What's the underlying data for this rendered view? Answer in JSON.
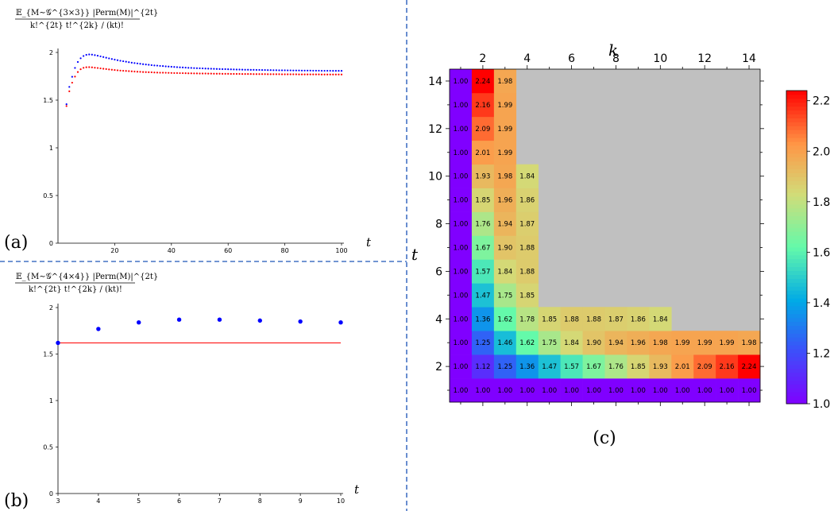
{
  "panels": {
    "a": {
      "tag": "(a)",
      "ylabel_numerator": "𝔼_{M∼𝒢^{3×3}} |Perm(M)|^{2t}",
      "ylabel_denominator": "k!^{2t} t!^{2k} / (kt)!",
      "xlabel": "t"
    },
    "b": {
      "tag": "(b)",
      "ylabel_numerator": "𝔼_{M∼𝒢^{4×4}} |Perm(M)|^{2t}",
      "ylabel_denominator": "k!^{2t} t!^{2k} / (kt)!",
      "xlabel": "t"
    },
    "c": {
      "tag": "(c)",
      "xlabel": "k",
      "ylabel": "t"
    }
  },
  "colors": {
    "series_blue": "#0000ff",
    "series_red": "#ff0000",
    "divider": "#4472c4",
    "na_cell": "#c0c0c0"
  },
  "chart_data": [
    {
      "panel": "a",
      "type": "scatter",
      "xlim": [
        0,
        100
      ],
      "ylim": [
        0,
        2
      ],
      "xticks": [
        20,
        40,
        60,
        80,
        100
      ],
      "yticks": [
        0,
        0.5,
        1,
        1.5,
        2
      ],
      "xticklabels": [
        "20",
        "40",
        "60",
        "80",
        "100"
      ],
      "yticklabels": [
        "0",
        "0.5",
        "1",
        "1.5",
        "2"
      ],
      "series": [
        {
          "color": "blue",
          "x": [
            3,
            4,
            5,
            6,
            7,
            8,
            9,
            10,
            11,
            12,
            13,
            14,
            15,
            16,
            17,
            18,
            19,
            20,
            21,
            22,
            23,
            24,
            25,
            26,
            27,
            28,
            29,
            30,
            31,
            32,
            33,
            34,
            35,
            36,
            37,
            38,
            39,
            40,
            41,
            42,
            43,
            44,
            45,
            46,
            47,
            48,
            49,
            50,
            51,
            52,
            53,
            54,
            55,
            56,
            57,
            58,
            59,
            60,
            61,
            62,
            63,
            64,
            65,
            66,
            67,
            68,
            69,
            70,
            71,
            72,
            73,
            74,
            75,
            76,
            77,
            78,
            79,
            80,
            81,
            82,
            83,
            84,
            85,
            86,
            87,
            88,
            89,
            90,
            91,
            92,
            93,
            94,
            95,
            96,
            97,
            98,
            99,
            100
          ],
          "y": [
            1.457,
            1.639,
            1.745,
            1.838,
            1.9,
            1.939,
            1.963,
            1.975,
            1.979,
            1.977,
            1.972,
            1.966,
            1.959,
            1.952,
            1.945,
            1.938,
            1.931,
            1.925,
            1.919,
            1.913,
            1.908,
            1.903,
            1.898,
            1.893,
            1.889,
            1.885,
            1.881,
            1.877,
            1.874,
            1.871,
            1.867,
            1.864,
            1.862,
            1.859,
            1.857,
            1.854,
            1.852,
            1.85,
            1.848,
            1.846,
            1.844,
            1.843,
            1.841,
            1.839,
            1.838,
            1.836,
            1.835,
            1.834,
            1.833,
            1.831,
            1.83,
            1.829,
            1.828,
            1.827,
            1.826,
            1.825,
            1.825,
            1.824,
            1.823,
            1.822,
            1.821,
            1.821,
            1.82,
            1.819,
            1.819,
            1.818,
            1.818,
            1.817,
            1.817,
            1.816,
            1.816,
            1.815,
            1.815,
            1.814,
            1.814,
            1.813,
            1.813,
            1.813,
            1.812,
            1.812,
            1.811,
            1.811,
            1.811,
            1.81,
            1.81,
            1.81,
            1.81,
            1.809,
            1.809,
            1.809,
            1.808,
            1.808,
            1.808,
            1.808,
            1.807,
            1.807,
            1.807,
            1.807
          ]
        },
        {
          "color": "red",
          "x": [
            3,
            4,
            5,
            6,
            7,
            8,
            9,
            10,
            11,
            12,
            13,
            14,
            15,
            16,
            17,
            18,
            19,
            20,
            21,
            22,
            23,
            24,
            25,
            26,
            27,
            28,
            29,
            30,
            31,
            32,
            33,
            34,
            35,
            36,
            37,
            38,
            39,
            40,
            41,
            42,
            43,
            44,
            45,
            46,
            47,
            48,
            49,
            50,
            51,
            52,
            53,
            54,
            55,
            56,
            57,
            58,
            59,
            60,
            61,
            62,
            63,
            64,
            65,
            66,
            67,
            68,
            69,
            70,
            71,
            72,
            73,
            74,
            75,
            76,
            77,
            78,
            79,
            80,
            81,
            82,
            83,
            84,
            85,
            86,
            87,
            88,
            89,
            90,
            91,
            92,
            93,
            94,
            95,
            96,
            97,
            98,
            99,
            100
          ],
          "y": [
            1.438,
            1.593,
            1.683,
            1.747,
            1.795,
            1.824,
            1.839,
            1.845,
            1.846,
            1.844,
            1.84,
            1.837,
            1.833,
            1.829,
            1.826,
            1.822,
            1.819,
            1.816,
            1.813,
            1.81,
            1.808,
            1.806,
            1.804,
            1.802,
            1.8,
            1.798,
            1.797,
            1.795,
            1.794,
            1.793,
            1.792,
            1.79,
            1.789,
            1.788,
            1.788,
            1.787,
            1.786,
            1.785,
            1.784,
            1.784,
            1.783,
            1.783,
            1.782,
            1.781,
            1.781,
            1.78,
            1.78,
            1.779,
            1.779,
            1.779,
            1.778,
            1.778,
            1.777,
            1.777,
            1.777,
            1.776,
            1.776,
            1.776,
            1.775,
            1.775,
            1.775,
            1.775,
            1.774,
            1.774,
            1.774,
            1.774,
            1.773,
            1.773,
            1.773,
            1.773,
            1.773,
            1.772,
            1.772,
            1.772,
            1.772,
            1.772,
            1.771,
            1.771,
            1.771,
            1.771,
            1.771,
            1.771,
            1.77,
            1.77,
            1.77,
            1.77,
            1.77,
            1.77,
            1.77,
            1.77,
            1.769,
            1.769,
            1.769,
            1.769,
            1.769,
            1.769,
            1.769,
            1.769
          ]
        }
      ]
    },
    {
      "panel": "b",
      "type": "scatter",
      "xlim": [
        3,
        10
      ],
      "ylim": [
        0,
        2
      ],
      "xticks": [
        3,
        4,
        5,
        6,
        7,
        8,
        9,
        10
      ],
      "yticks": [
        0,
        0.5,
        1,
        1.5,
        2
      ],
      "xticklabels": [
        "3",
        "4",
        "5",
        "6",
        "7",
        "8",
        "9",
        "10"
      ],
      "yticklabels": [
        "0",
        "0.5",
        "1",
        "1.5",
        "2"
      ],
      "series": [
        {
          "color": "blue",
          "x": [
            3,
            4,
            5,
            6,
            7,
            8,
            9,
            10
          ],
          "y": [
            1.62,
            1.77,
            1.84,
            1.87,
            1.87,
            1.86,
            1.85,
            1.84
          ]
        }
      ],
      "hline": {
        "y": 1.62,
        "color": "red"
      }
    },
    {
      "panel": "c",
      "type": "heatmap",
      "xlim": [
        0.5,
        14.5
      ],
      "ylim": [
        0.5,
        14.5
      ],
      "xticks": [
        2,
        4,
        6,
        8,
        10,
        12,
        14
      ],
      "yticks": [
        2,
        4,
        6,
        8,
        10,
        12,
        14
      ],
      "xticklabels": [
        "2",
        "4",
        "6",
        "8",
        "10",
        "12",
        "14"
      ],
      "yticklabels": [
        "2",
        "4",
        "6",
        "8",
        "10",
        "12",
        "14"
      ],
      "colorscale": "rainbow",
      "zlim": [
        1.0,
        2.24
      ],
      "colorbar_ticks": [
        1.0,
        1.2,
        1.4,
        1.6,
        1.8,
        2.0,
        2.2
      ],
      "colorbar_ticklabels": [
        "1.0",
        "1.2",
        "1.4",
        "1.6",
        "1.8",
        "2.0",
        "2.2"
      ],
      "rows_t": [
        1,
        2,
        3,
        4,
        5,
        6,
        7,
        8,
        9,
        10,
        11,
        12,
        13,
        14
      ],
      "columns_k": [
        1,
        2,
        3,
        4,
        5,
        6,
        7,
        8,
        9,
        10,
        11,
        12,
        13,
        14
      ],
      "values": [
        [
          1.0,
          1.0,
          1.0,
          1.0,
          1.0,
          1.0,
          1.0,
          1.0,
          1.0,
          1.0,
          1.0,
          1.0,
          1.0,
          1.0
        ],
        [
          1.0,
          1.12,
          1.25,
          1.36,
          1.47,
          1.57,
          1.67,
          1.76,
          1.85,
          1.93,
          2.01,
          2.09,
          2.16,
          2.24
        ],
        [
          1.0,
          1.25,
          1.46,
          1.62,
          1.75,
          1.84,
          1.9,
          1.94,
          1.96,
          1.98,
          1.99,
          1.99,
          1.99,
          1.98
        ],
        [
          1.0,
          1.36,
          1.62,
          1.78,
          1.85,
          1.88,
          1.88,
          1.87,
          1.86,
          1.84,
          null,
          null,
          null,
          null
        ],
        [
          1.0,
          1.47,
          1.75,
          1.85,
          null,
          null,
          null,
          null,
          null,
          null,
          null,
          null,
          null,
          null
        ],
        [
          1.0,
          1.57,
          1.84,
          1.88,
          null,
          null,
          null,
          null,
          null,
          null,
          null,
          null,
          null,
          null
        ],
        [
          1.0,
          1.67,
          1.9,
          1.88,
          null,
          null,
          null,
          null,
          null,
          null,
          null,
          null,
          null,
          null
        ],
        [
          1.0,
          1.76,
          1.94,
          1.87,
          null,
          null,
          null,
          null,
          null,
          null,
          null,
          null,
          null,
          null
        ],
        [
          1.0,
          1.85,
          1.96,
          1.86,
          null,
          null,
          null,
          null,
          null,
          null,
          null,
          null,
          null,
          null
        ],
        [
          1.0,
          1.93,
          1.98,
          1.84,
          null,
          null,
          null,
          null,
          null,
          null,
          null,
          null,
          null,
          null
        ],
        [
          1.0,
          2.01,
          1.99,
          null,
          null,
          null,
          null,
          null,
          null,
          null,
          null,
          null,
          null,
          null
        ],
        [
          1.0,
          2.09,
          1.99,
          null,
          null,
          null,
          null,
          null,
          null,
          null,
          null,
          null,
          null,
          null
        ],
        [
          1.0,
          2.16,
          1.99,
          null,
          null,
          null,
          null,
          null,
          null,
          null,
          null,
          null,
          null,
          null
        ],
        [
          1.0,
          2.24,
          1.98,
          null,
          null,
          null,
          null,
          null,
          null,
          null,
          null,
          null,
          null,
          null
        ]
      ]
    }
  ]
}
